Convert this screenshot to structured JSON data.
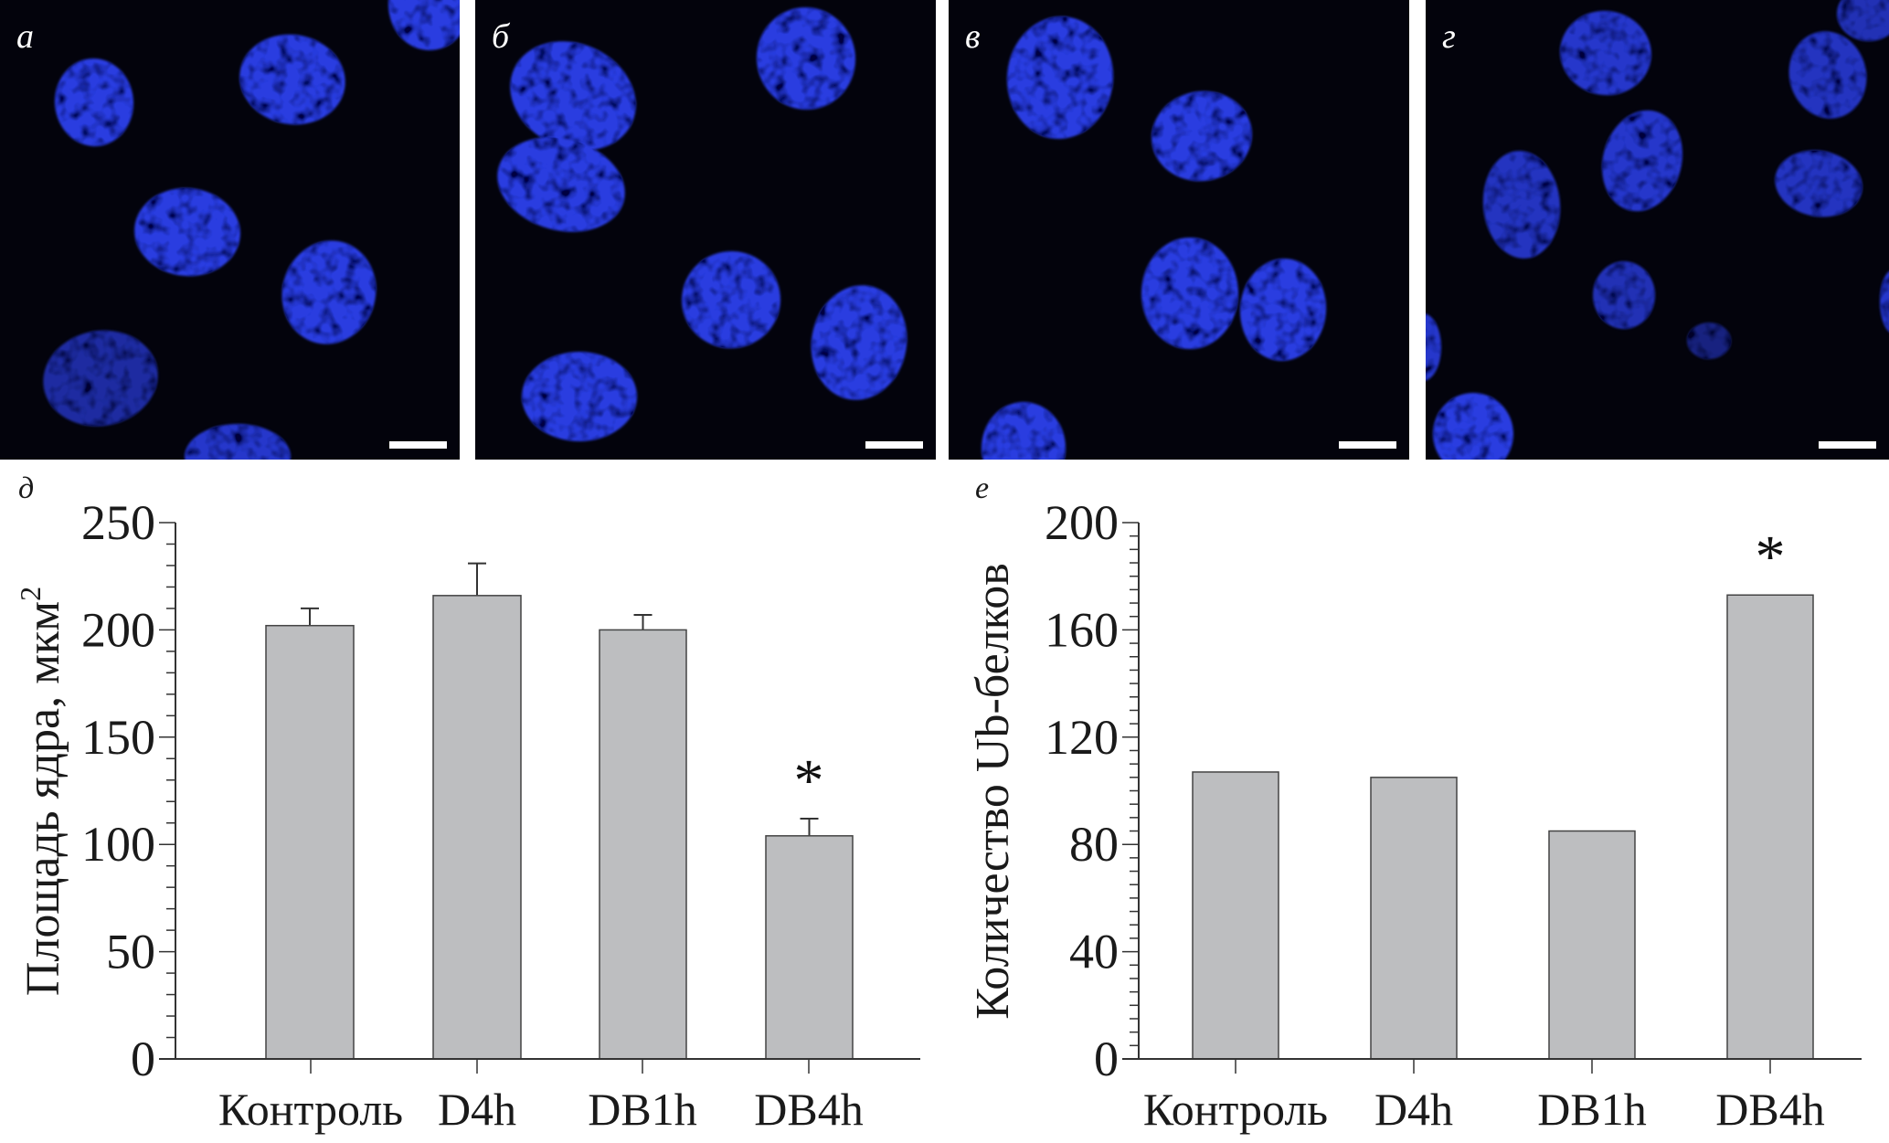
{
  "figure": {
    "micrographs": [
      {
        "label": "а"
      },
      {
        "label": "б"
      },
      {
        "label": "в"
      },
      {
        "label": "г"
      }
    ],
    "colors": {
      "nucleus": "#2b3ee0",
      "background": "#03030c",
      "bar": "#bdbec0",
      "scale_bar": "#ffffff"
    }
  },
  "chart_data": [
    {
      "panel_label": "д",
      "type": "bar",
      "categories": [
        "Контроль",
        "D4h",
        "DB1h",
        "DB4h"
      ],
      "values": [
        202,
        216,
        200,
        104
      ],
      "error_upper": [
        210,
        231,
        207,
        112
      ],
      "ylabel": "Площадь ядра, мкм",
      "ylabel_superscript": "2",
      "ylim": [
        0,
        250
      ],
      "yticks": [
        0,
        50,
        100,
        150,
        200,
        250
      ],
      "minor_tick_step": 10,
      "annotations": [
        {
          "category": "DB4h",
          "text": "*"
        }
      ],
      "grid": false
    },
    {
      "panel_label": "е",
      "type": "bar",
      "categories": [
        "Контроль",
        "D4h",
        "DB1h",
        "DB4h"
      ],
      "values": [
        107,
        105,
        85,
        173
      ],
      "ylabel": "Количество Ub-белков",
      "ylim": [
        0,
        200
      ],
      "yticks": [
        0,
        40,
        80,
        120,
        160,
        200
      ],
      "minor_tick_step": 5,
      "annotations": [
        {
          "category": "DB4h",
          "text": "*"
        }
      ],
      "grid": false
    }
  ]
}
